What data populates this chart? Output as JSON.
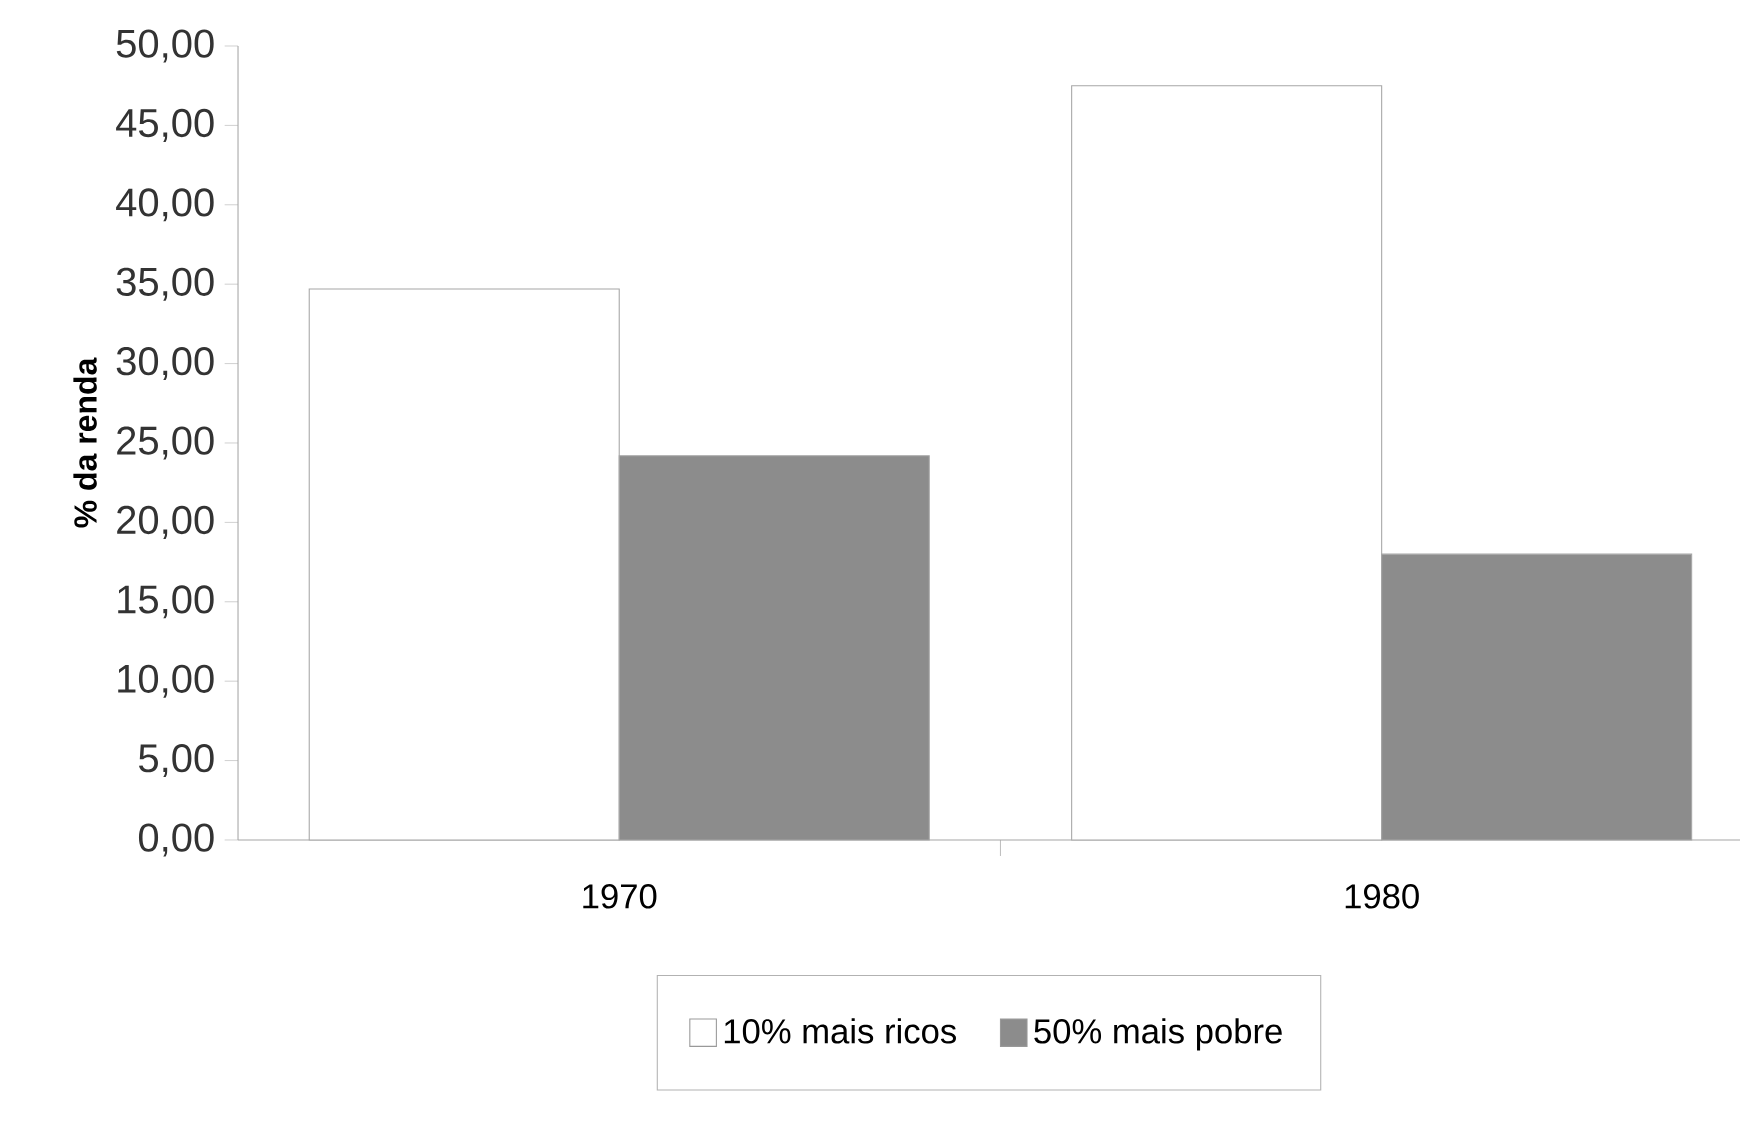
{
  "chart_data": {
    "type": "bar",
    "ylabel": "% da renda",
    "categories": [
      "1970",
      "1980"
    ],
    "series": [
      {
        "name": "10% mais ricos",
        "color": "#ffffff",
        "values": [
          34.7,
          47.5
        ]
      },
      {
        "name": "50% mais pobre",
        "color": "#8c8c8c",
        "values": [
          24.2,
          18.0
        ]
      }
    ],
    "ylim": [
      0,
      50
    ],
    "yticks": [
      {
        "value": 0,
        "label": "0,00"
      },
      {
        "value": 5,
        "label": "5,00"
      },
      {
        "value": 10,
        "label": "10,00"
      },
      {
        "value": 15,
        "label": "15,00"
      },
      {
        "value": 20,
        "label": "20,00"
      },
      {
        "value": 25,
        "label": "25,00"
      },
      {
        "value": 30,
        "label": "30,00"
      },
      {
        "value": 35,
        "label": "35,00"
      },
      {
        "value": 40,
        "label": "40,00"
      },
      {
        "value": 45,
        "label": "45,00"
      },
      {
        "value": 50,
        "label": "50,00"
      }
    ],
    "legend": "bottom",
    "grid": false
  }
}
